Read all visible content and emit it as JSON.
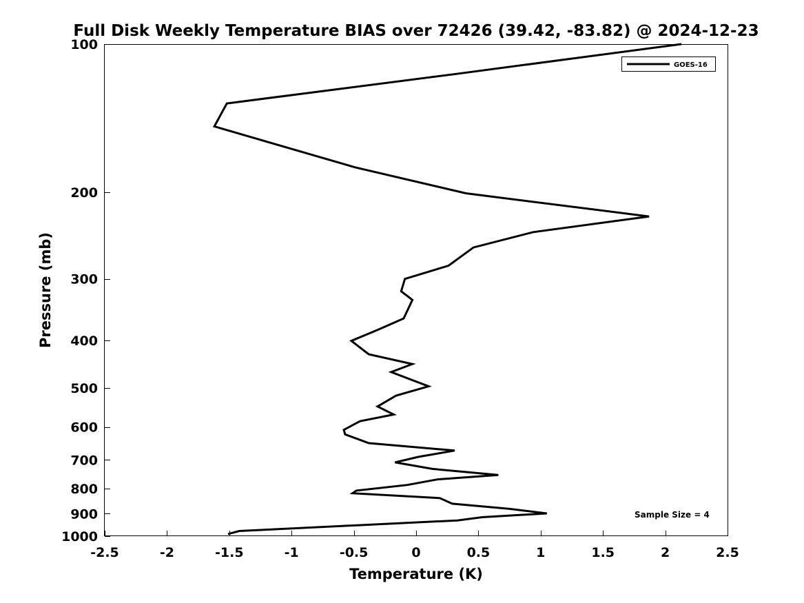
{
  "chart_data": {
    "type": "line",
    "title": "Full Disk Weekly Temperature BIAS over 72426 (39.42, -83.82) @ 2024-12-23",
    "xlabel": "Temperature (K)",
    "ylabel": "Pressure (mb)",
    "xlim": [
      -2.5,
      2.5
    ],
    "ylim": [
      1000,
      100
    ],
    "y_scale": "log",
    "x_ticks": [
      -2.5,
      -2,
      -1.5,
      -1,
      -0.5,
      0,
      0.5,
      1,
      1.5,
      2,
      2.5
    ],
    "x_tick_labels": [
      "-2.5",
      "-2",
      "-1.5",
      "-1",
      "-0.5",
      "0",
      "0.5",
      "1",
      "1.5",
      "2",
      "2.5"
    ],
    "y_ticks": [
      100,
      200,
      300,
      400,
      500,
      600,
      700,
      800,
      900,
      1000
    ],
    "y_tick_labels": [
      "100",
      "200",
      "300",
      "400",
      "500",
      "600",
      "700",
      "800",
      "900",
      "1000"
    ],
    "grid": false,
    "legend": {
      "placement": "top-right",
      "entries": [
        "GOES-16"
      ]
    },
    "annotation": "Sample Size = 4",
    "series": [
      {
        "name": "GOES-16",
        "color": "#000000",
        "points": [
          [
            2.13,
            100
          ],
          [
            0.32,
            115
          ],
          [
            -1.52,
            132
          ],
          [
            -1.62,
            147
          ],
          [
            -0.49,
            178
          ],
          [
            0.4,
            201
          ],
          [
            1.87,
            224
          ],
          [
            0.94,
            241
          ],
          [
            0.46,
            259
          ],
          [
            0.26,
            282
          ],
          [
            -0.09,
            300
          ],
          [
            -0.12,
            318
          ],
          [
            -0.03,
            331
          ],
          [
            -0.1,
            361
          ],
          [
            -0.31,
            381
          ],
          [
            -0.52,
            401
          ],
          [
            -0.38,
            427
          ],
          [
            -0.03,
            447
          ],
          [
            -0.2,
            464
          ],
          [
            0.1,
            496
          ],
          [
            -0.16,
            518
          ],
          [
            -0.31,
            545
          ],
          [
            -0.18,
            566
          ],
          [
            -0.45,
            584
          ],
          [
            -0.58,
            608
          ],
          [
            -0.57,
            621
          ],
          [
            -0.38,
            647
          ],
          [
            0.31,
            670
          ],
          [
            0.02,
            690
          ],
          [
            -0.17,
            708
          ],
          [
            0.13,
            730
          ],
          [
            0.66,
            751
          ],
          [
            0.17,
            767
          ],
          [
            -0.07,
            787
          ],
          [
            -0.48,
            808
          ],
          [
            -0.51,
            818
          ],
          [
            0.19,
            837
          ],
          [
            0.29,
            859
          ],
          [
            0.75,
            880
          ],
          [
            1.05,
            899
          ],
          [
            0.53,
            915
          ],
          [
            0.33,
            929
          ],
          [
            -1.42,
            976
          ],
          [
            -1.51,
            990
          ]
        ]
      }
    ]
  }
}
